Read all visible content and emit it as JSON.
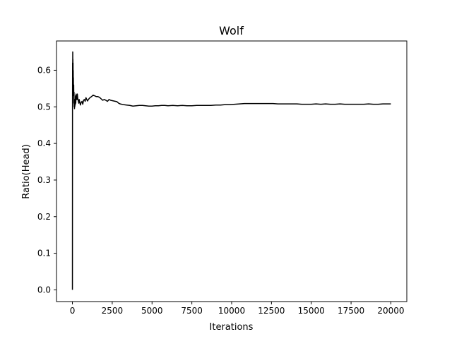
{
  "chart_data": {
    "type": "line",
    "title": "Wolf",
    "xlabel": "Iterations",
    "ylabel": "Ratio(Head)",
    "xlim": [
      -1000,
      21000
    ],
    "ylim": [
      -0.032,
      0.68
    ],
    "xticks": [
      0,
      2500,
      5000,
      7500,
      10000,
      12500,
      15000,
      17500,
      20000
    ],
    "yticks": [
      0.0,
      0.1,
      0.2,
      0.3,
      0.4,
      0.5,
      0.6
    ],
    "grid": false,
    "series": [
      {
        "color": "#000000",
        "x": [
          0,
          5,
          10,
          15,
          20,
          25,
          30,
          35,
          40,
          45,
          50,
          55,
          60,
          70,
          80,
          90,
          100,
          110,
          120,
          130,
          140,
          150,
          160,
          175,
          190,
          210,
          230,
          250,
          270,
          290,
          310,
          330,
          350,
          375,
          400,
          425,
          450,
          475,
          500,
          550,
          600,
          650,
          700,
          750,
          800,
          850,
          900,
          950,
          1000,
          1100,
          1200,
          1300,
          1400,
          1500,
          1600,
          1700,
          1800,
          1900,
          2000,
          2100,
          2200,
          2300,
          2400,
          2500,
          2600,
          2700,
          2800,
          2900,
          3000,
          3200,
          3400,
          3600,
          3800,
          4000,
          4200,
          4400,
          4600,
          4800,
          5000,
          5200,
          5400,
          5600,
          5800,
          6000,
          6300,
          6600,
          6900,
          7200,
          7500,
          7800,
          8100,
          8400,
          8700,
          9000,
          9300,
          9600,
          9900,
          10200,
          10500,
          10800,
          11100,
          11400,
          11700,
          12000,
          12300,
          12600,
          12900,
          13200,
          13500,
          13800,
          14100,
          14400,
          14700,
          15000,
          15300,
          15600,
          15900,
          16200,
          16500,
          16800,
          17100,
          17400,
          17700,
          18000,
          18300,
          18600,
          18900,
          19200,
          19500,
          19800,
          20000
        ],
        "y": [
          0.0,
          0.5,
          0.62,
          0.55,
          0.65,
          0.58,
          0.63,
          0.6,
          0.62,
          0.57,
          0.6,
          0.55,
          0.58,
          0.53,
          0.56,
          0.51,
          0.54,
          0.5,
          0.52,
          0.495,
          0.515,
          0.5,
          0.52,
          0.505,
          0.53,
          0.51,
          0.535,
          0.52,
          0.53,
          0.52,
          0.535,
          0.525,
          0.52,
          0.515,
          0.51,
          0.52,
          0.515,
          0.51,
          0.505,
          0.512,
          0.515,
          0.507,
          0.518,
          0.52,
          0.515,
          0.525,
          0.52,
          0.516,
          0.52,
          0.525,
          0.528,
          0.532,
          0.53,
          0.528,
          0.528,
          0.526,
          0.522,
          0.518,
          0.52,
          0.518,
          0.515,
          0.52,
          0.518,
          0.517,
          0.516,
          0.515,
          0.514,
          0.51,
          0.508,
          0.506,
          0.505,
          0.504,
          0.502,
          0.503,
          0.504,
          0.504,
          0.503,
          0.502,
          0.502,
          0.503,
          0.503,
          0.504,
          0.504,
          0.503,
          0.504,
          0.503,
          0.504,
          0.503,
          0.503,
          0.504,
          0.504,
          0.504,
          0.504,
          0.505,
          0.505,
          0.506,
          0.506,
          0.507,
          0.508,
          0.509,
          0.509,
          0.509,
          0.509,
          0.509,
          0.509,
          0.509,
          0.508,
          0.508,
          0.508,
          0.508,
          0.508,
          0.507,
          0.507,
          0.507,
          0.508,
          0.507,
          0.508,
          0.507,
          0.507,
          0.508,
          0.507,
          0.507,
          0.507,
          0.507,
          0.507,
          0.508,
          0.507,
          0.507,
          0.508,
          0.508,
          0.508
        ]
      }
    ]
  }
}
